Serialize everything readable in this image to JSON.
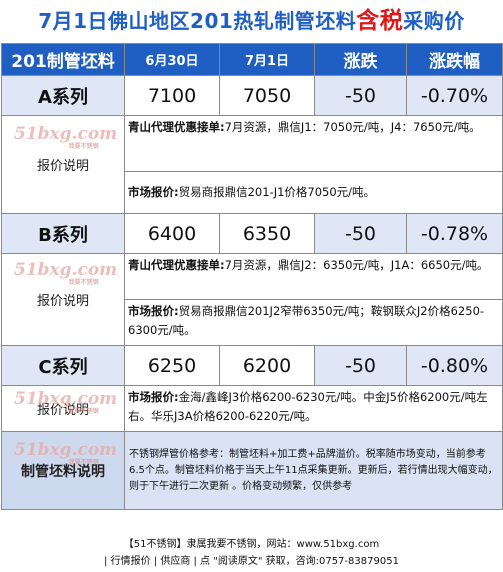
{
  "title": {
    "part1": "7月1日佛山地区201热轧制管坯料",
    "highlight": "含税",
    "part2": "采购价"
  },
  "header": {
    "product": "201制管坯料",
    "date1": "6月30日",
    "date2": "7月1日",
    "change": "涨跌",
    "change_pct": "涨跌幅"
  },
  "series": [
    {
      "name": "A系列",
      "price1": "7100",
      "price2": "7050",
      "change": "-50",
      "pct": "-0.70%",
      "label": "报价说明",
      "agent_title": "青山代理优惠接单:",
      "agent_text": "7月资源，鼎信J1：7050元/吨，J4：7650元/吨。",
      "market_title": "市场报价:",
      "market_text": "贸易商报鼎信201-J1价格7050元/吨。"
    },
    {
      "name": "B系列",
      "price1": "6400",
      "price2": "6350",
      "change": "-50",
      "pct": "-0.78%",
      "label": "报价说明",
      "agent_title": "青山代理优惠接单:",
      "agent_text": "7月资源，鼎信J2：6350元/吨，J1A：6650元/吨。",
      "market_title": "市场报价:",
      "market_text": "贸易商报鼎信201J2窄带6350元/吨；鞍钢联众J2价格6250-6300元/吨。"
    },
    {
      "name": "C系列",
      "price1": "6250",
      "price2": "6200",
      "change": "-50",
      "pct": "-0.80%",
      "label": "报价说明",
      "market_title": "市场报价:",
      "market_text": "金海/鑫峰J3价格6200-6230元/吨。中金J5价格6200元/吨左右。华乐J3A价格6200-6220元/吨。"
    }
  ],
  "final": {
    "label": "制管坯料说明",
    "text": "不锈钢焊管价格参考：制管坯料+加工费+品牌溢价。税率随市场变动，当前参考6.5个点。制管坯料价格于当天上午11点采集更新。更新后，若行情出现大幅变动，则于下午进行二次更新 。价格变动频繁，仅供参考"
  },
  "watermark": {
    "main": "51bxg.com",
    "sub": "我要不锈钢"
  },
  "footer": {
    "line1": "【51不锈钢】隶属我要不锈钢，网站：www.51bxg.com",
    "line2": "| 行情报价 | 供应商 | 点 \"阅读原文\" 获取，咨询:0757-83879051"
  }
}
